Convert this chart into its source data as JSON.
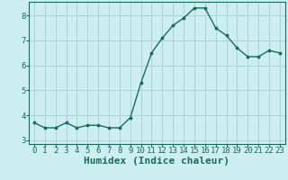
{
  "x": [
    0,
    1,
    2,
    3,
    4,
    5,
    6,
    7,
    8,
    9,
    10,
    11,
    12,
    13,
    14,
    15,
    16,
    17,
    18,
    19,
    20,
    21,
    22,
    23
  ],
  "y": [
    3.7,
    3.5,
    3.5,
    3.7,
    3.5,
    3.6,
    3.6,
    3.5,
    3.5,
    3.9,
    5.3,
    6.5,
    7.1,
    7.6,
    7.9,
    8.3,
    8.3,
    7.5,
    7.2,
    6.7,
    6.35,
    6.35,
    6.6,
    6.5
  ],
  "xlabel": "Humidex (Indice chaleur)",
  "xlim": [
    -0.5,
    23.5
  ],
  "ylim": [
    2.85,
    8.55
  ],
  "yticks": [
    3,
    4,
    5,
    6,
    7,
    8
  ],
  "xticks": [
    0,
    1,
    2,
    3,
    4,
    5,
    6,
    7,
    8,
    9,
    10,
    11,
    12,
    13,
    14,
    15,
    16,
    17,
    18,
    19,
    20,
    21,
    22,
    23
  ],
  "xtick_labels": [
    "0",
    "1",
    "2",
    "3",
    "4",
    "5",
    "6",
    "7",
    "8",
    "9",
    "10",
    "11",
    "12",
    "13",
    "14",
    "15",
    "16",
    "17",
    "18",
    "19",
    "20",
    "21",
    "22",
    "23"
  ],
  "line_color": "#1a6b5a",
  "marker": ".",
  "marker_size": 3.5,
  "bg_color": "#cceef0",
  "grid_color": "#aad4d6",
  "fig_bg": "#cceef0",
  "tick_color": "#1a6b5a",
  "label_fontsize": 7.5,
  "xlabel_fontsize": 8.0,
  "tick_fontsize": 6.5
}
